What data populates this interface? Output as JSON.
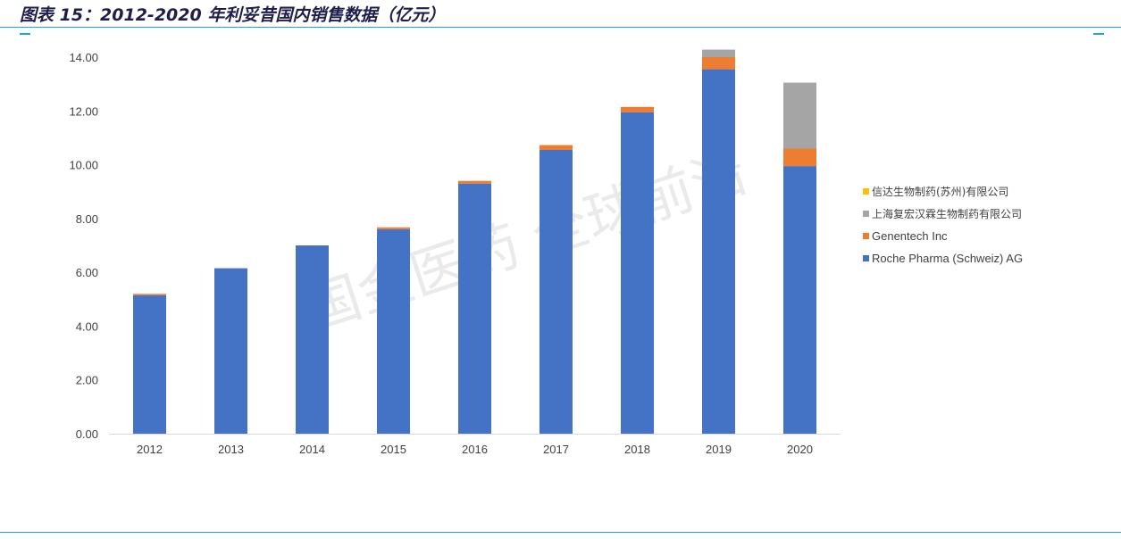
{
  "header": {
    "title": "图表 15：2012-2020 年利妥昔国内销售数据（亿元）"
  },
  "watermark": "国金医药 全球前沿",
  "chart_data": {
    "type": "bar",
    "stacked": true,
    "categories": [
      "2012",
      "2013",
      "2014",
      "2015",
      "2016",
      "2017",
      "2018",
      "2019",
      "2020"
    ],
    "ylim": [
      0,
      14
    ],
    "yticks": [
      "0.00",
      "2.00",
      "4.00",
      "6.00",
      "8.00",
      "10.00",
      "12.00",
      "14.00"
    ],
    "grid": false,
    "legend_position": "right",
    "series": [
      {
        "name": "Roche Pharma (Schweiz) AG",
        "color": "#4472c4",
        "values": [
          5.15,
          6.15,
          7.0,
          7.6,
          9.3,
          10.55,
          11.95,
          13.55,
          9.95
        ]
      },
      {
        "name": "Genentech Inc",
        "color": "#ed7d31",
        "values": [
          0.05,
          0.0,
          0.0,
          0.07,
          0.1,
          0.18,
          0.2,
          0.45,
          0.65
        ]
      },
      {
        "name": "上海复宏汉霖生物制药有限公司",
        "color": "#a5a5a5",
        "values": [
          0,
          0,
          0,
          0,
          0,
          0,
          0,
          0.28,
          2.45
        ]
      },
      {
        "name": "信达生物制药(苏州)有限公司",
        "color": "#ffc000",
        "values": [
          0,
          0,
          0,
          0,
          0,
          0,
          0,
          0,
          0
        ]
      }
    ],
    "legend_order": [
      3,
      2,
      1,
      0
    ]
  }
}
